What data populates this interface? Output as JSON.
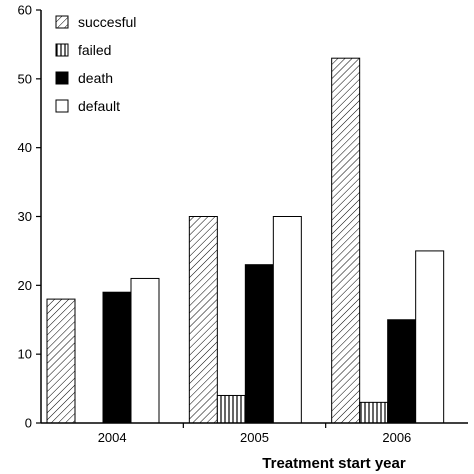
{
  "chart_data": {
    "type": "bar",
    "title": "",
    "xlabel": "Treatment start year",
    "ylabel": "",
    "categories": [
      "2004",
      "2005",
      "2006"
    ],
    "ylim": [
      0,
      60
    ],
    "yticks": [
      0,
      10,
      20,
      30,
      40,
      50,
      60
    ],
    "grid": false,
    "legend_position": "top-left",
    "series": [
      {
        "name": "succesful",
        "pattern": "diagonal-hatch",
        "values": [
          18,
          30,
          53
        ]
      },
      {
        "name": "failed",
        "pattern": "vertical-hatch",
        "values": [
          0,
          4,
          3
        ]
      },
      {
        "name": "death",
        "pattern": "solid-black",
        "values": [
          19,
          23,
          15
        ]
      },
      {
        "name": "default",
        "pattern": "white",
        "values": [
          21,
          30,
          25
        ]
      }
    ]
  }
}
